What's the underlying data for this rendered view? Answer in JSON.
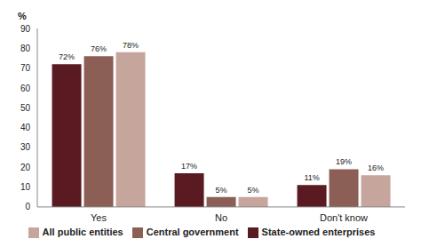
{
  "chart_data": {
    "type": "bar",
    "ylabel": "%",
    "categories": [
      "Yes",
      "No",
      "Don't know"
    ],
    "series": [
      {
        "name": "State-owned enterprises",
        "color": "#5a1a22",
        "values": [
          72,
          17,
          11
        ],
        "value_labels": [
          "72%",
          "17%",
          "11%"
        ]
      },
      {
        "name": "Central government",
        "color": "#8c5f56",
        "values": [
          76,
          5,
          19
        ],
        "value_labels": [
          "76%",
          "5%",
          "19%"
        ]
      },
      {
        "name": "All public entities",
        "color": "#c6a59d",
        "values": [
          78,
          5,
          16
        ],
        "value_labels": [
          "78%",
          "5%",
          "16%"
        ]
      }
    ],
    "ylim": [
      0,
      90
    ],
    "yticks": [
      0,
      10,
      20,
      30,
      40,
      50,
      60,
      70,
      80,
      90
    ],
    "grid": false,
    "legend": "bottom",
    "data_labels": true
  }
}
